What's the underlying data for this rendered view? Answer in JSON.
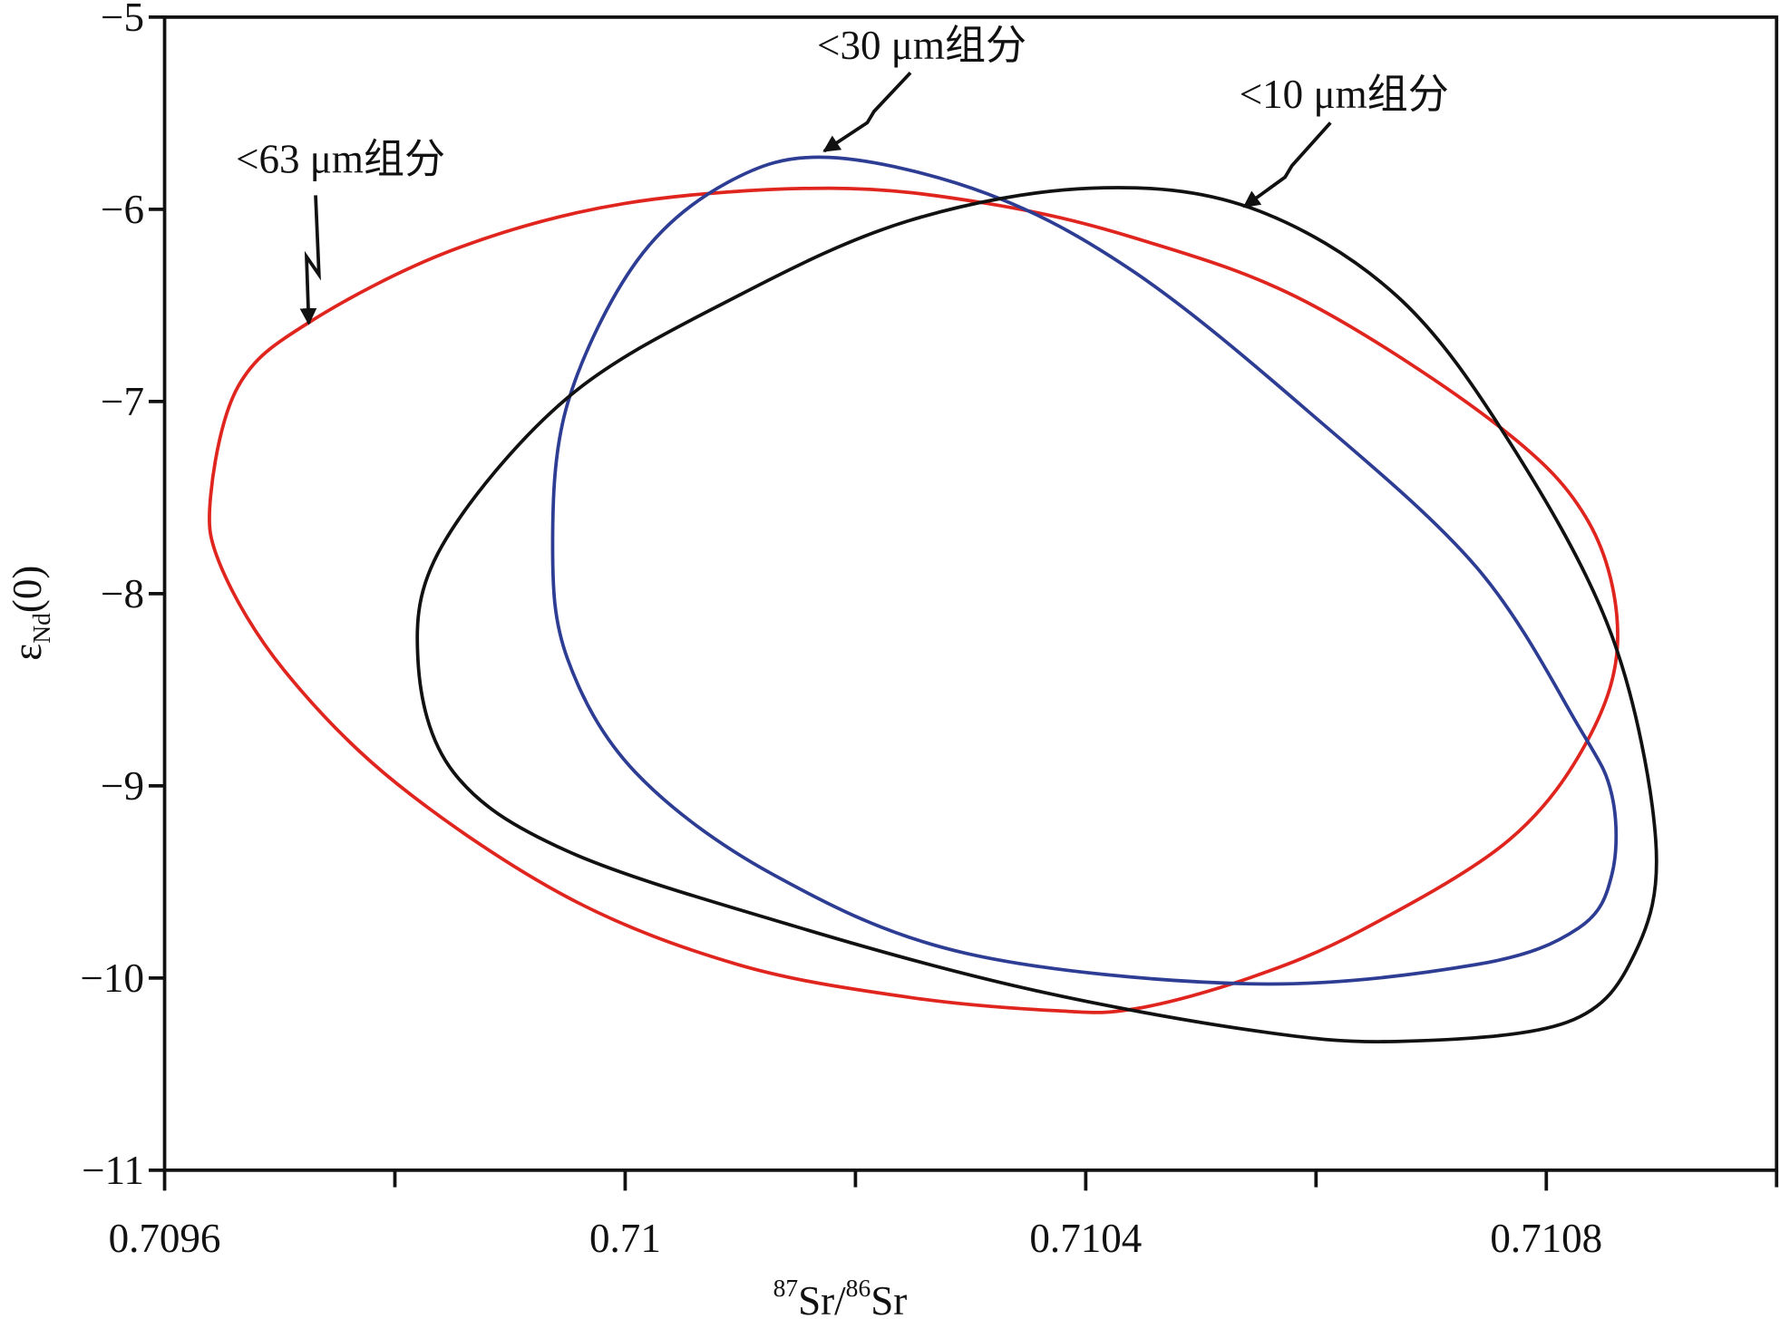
{
  "chart_data": {
    "type": "closed-curve",
    "xlabel": [
      "87",
      "Sr/",
      "86",
      "Sr"
    ],
    "ylabel": [
      "ε",
      "Nd",
      "(0)"
    ],
    "xlim": [
      0.7096,
      0.711
    ],
    "ylim": [
      -11,
      -5
    ],
    "xticks": [
      0.7096,
      0.71,
      0.7104,
      0.7108
    ],
    "xticks_minor": [
      0.7098,
      0.7102,
      0.7106,
      0.711
    ],
    "yticks": [
      {
        "value": -5,
        "label": "−5"
      },
      {
        "value": -6,
        "label": "−6"
      },
      {
        "value": -7,
        "label": "−7"
      },
      {
        "value": -8,
        "label": "−8"
      },
      {
        "value": -9,
        "label": "−9"
      },
      {
        "value": -10,
        "label": "−10"
      },
      {
        "value": -11,
        "label": "−11"
      }
    ],
    "series": [
      {
        "name": "<63 μm组分",
        "color": "#e0251f",
        "x": [
          0.70964,
          0.709664,
          0.709725,
          0.709851,
          0.709999,
          0.710177,
          0.710315,
          0.710443,
          0.710591,
          0.710759,
          0.710837,
          0.710862,
          0.710837,
          0.710768,
          0.71064,
          0.710542,
          0.710443,
          0.710374,
          0.710246,
          0.710098,
          0.70995,
          0.709802,
          0.709704,
          0.709649
        ],
        "values": [
          -7.49,
          -6.92,
          -6.59,
          -6.21,
          -5.97,
          -5.89,
          -5.97,
          -6.15,
          -6.48,
          -7.13,
          -7.63,
          -8.22,
          -8.75,
          -9.28,
          -9.75,
          -10.0,
          -10.16,
          -10.17,
          -10.1,
          -9.93,
          -9.58,
          -8.99,
          -8.4,
          -7.86
        ]
      },
      {
        "name": "<30 μm组分",
        "color": "#2e3d94",
        "x": [
          0.710177,
          0.710089,
          0.71001,
          0.70995,
          0.709937,
          0.70995,
          0.710009,
          0.710128,
          0.710295,
          0.710542,
          0.710739,
          0.710828,
          0.710857,
          0.710857,
          0.710828,
          0.710739,
          0.710591,
          0.710443,
          0.710315
        ],
        "values": [
          -5.73,
          -5.86,
          -6.27,
          -7.01,
          -7.75,
          -8.34,
          -8.93,
          -9.46,
          -9.87,
          -10.03,
          -9.93,
          -9.74,
          -9.46,
          -9.05,
          -8.69,
          -7.86,
          -7.04,
          -6.33,
          -5.92
        ]
      },
      {
        "name": "<10 μm组分",
        "color": "#111111",
        "x": [
          0.710404,
          0.710542,
          0.71067,
          0.710769,
          0.710857,
          0.710895,
          0.710877,
          0.710818,
          0.71067,
          0.710542,
          0.710345,
          0.710147,
          0.70995,
          0.709851,
          0.70982,
          0.709841,
          0.70995,
          0.710098,
          0.710246
        ],
        "values": [
          -5.89,
          -5.99,
          -6.45,
          -7.22,
          -8.22,
          -9.28,
          -9.87,
          -10.23,
          -10.33,
          -10.27,
          -10.05,
          -9.73,
          -9.34,
          -8.93,
          -8.34,
          -7.75,
          -6.98,
          -6.45,
          -6.06
        ]
      }
    ]
  }
}
